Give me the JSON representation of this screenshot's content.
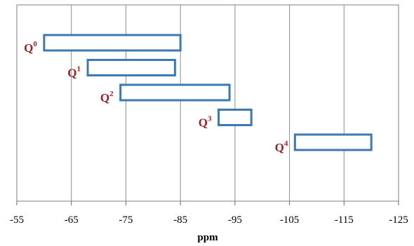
{
  "chart_data": {
    "type": "bar",
    "orientation": "horizontal-range",
    "xlabel": "ppm",
    "xlim": [
      -55,
      -125
    ],
    "x_ticks": [
      "-55",
      "-65",
      "-75",
      "-85",
      "-95",
      "-105",
      "-115",
      "-125"
    ],
    "grid": "vertical lines at each tick",
    "categories": [
      {
        "label": "Q",
        "sup": "0",
        "start": -60,
        "end": -85
      },
      {
        "label": "Q",
        "sup": "1",
        "start": -68,
        "end": -84
      },
      {
        "label": "Q",
        "sup": "2",
        "start": -74,
        "end": -94
      },
      {
        "label": "Q",
        "sup": "3",
        "start": -92,
        "end": -98
      },
      {
        "label": "Q",
        "sup": "4",
        "start": -106,
        "end": -120
      }
    ],
    "colors": {
      "bar_stroke": "#3c78b4",
      "label": "#a0202a",
      "grid": "#8c8c8c",
      "axis": "#666666"
    }
  }
}
